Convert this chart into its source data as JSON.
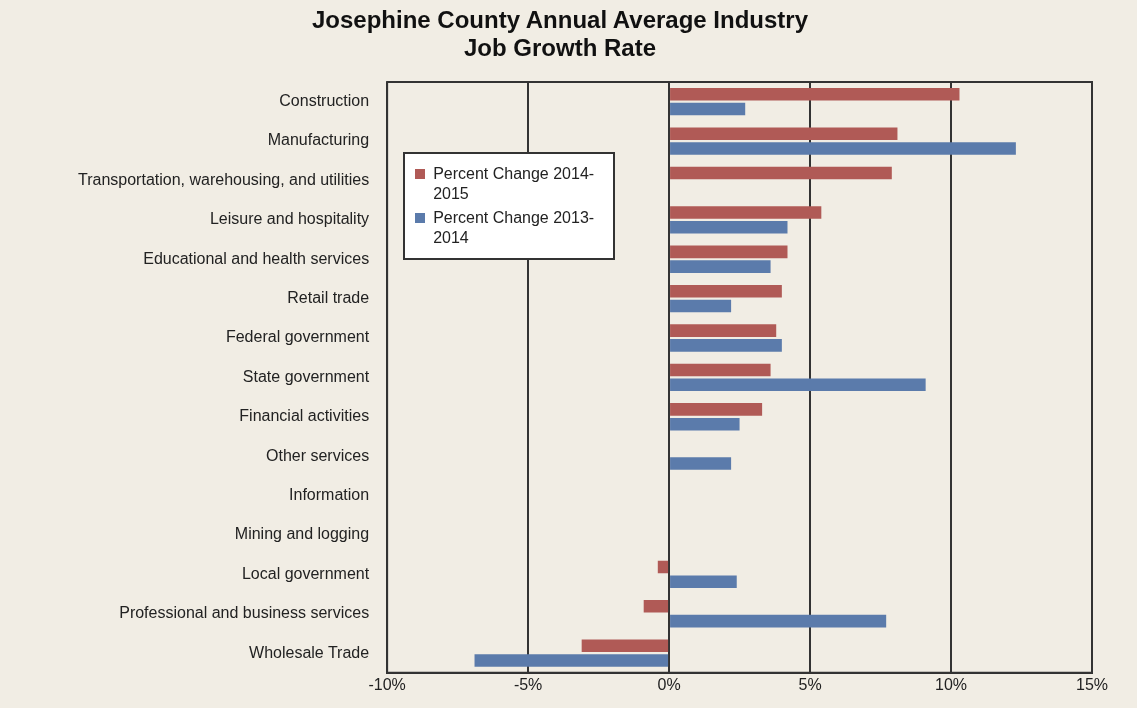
{
  "chart_data": {
    "type": "bar",
    "orientation": "horizontal",
    "title": "Josephine County Annual Average Industry Job Growth Rate",
    "categories": [
      "Construction",
      "Manufacturing",
      "Transportation, warehousing, and utilities",
      "Leisure and hospitality",
      "Educational and health services",
      "Retail trade",
      "Federal government",
      "State government",
      "Financial activities",
      "Other services",
      "Information",
      "Mining and logging",
      "Local government",
      "Professional and business services",
      "Wholesale Trade"
    ],
    "series": [
      {
        "name": "Percent Change 2014-2015",
        "color": "#b05a56",
        "values": [
          10.3,
          8.1,
          7.9,
          5.4,
          4.2,
          4.0,
          3.8,
          3.6,
          3.3,
          0,
          0,
          0,
          -0.4,
          -0.9,
          -3.1
        ]
      },
      {
        "name": "Percent Change 2013-2014",
        "color": "#5b7bab",
        "values": [
          2.7,
          12.3,
          0,
          4.2,
          3.6,
          2.2,
          4.0,
          9.1,
          2.5,
          2.2,
          0,
          0,
          2.4,
          7.7,
          -6.9
        ]
      }
    ],
    "xlim": [
      -10,
      15
    ],
    "xticks": [
      {
        "value": -10,
        "label": "-10%"
      },
      {
        "value": -5,
        "label": "-5%"
      },
      {
        "value": 0,
        "label": "0%"
      },
      {
        "value": 5,
        "label": "5%"
      },
      {
        "value": 10,
        "label": "10%"
      },
      {
        "value": 15,
        "label": "15%"
      }
    ],
    "grid": "x",
    "legend": "top left"
  }
}
